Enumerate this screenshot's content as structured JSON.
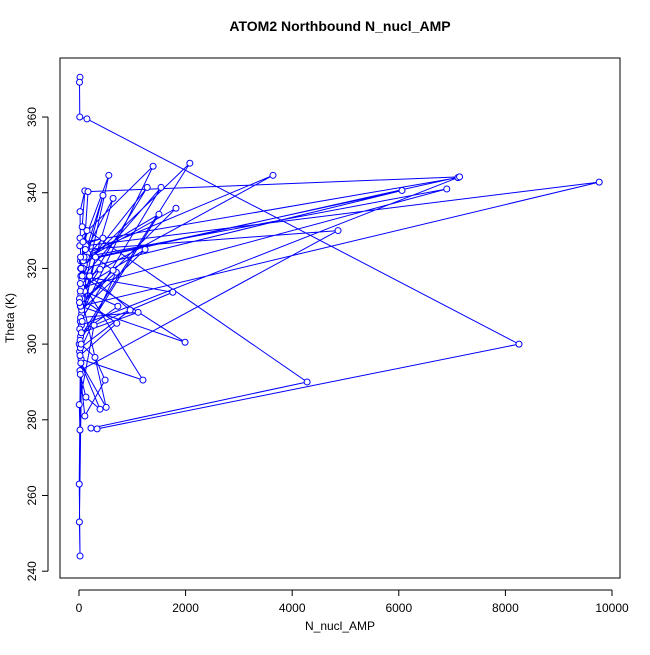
{
  "chart_data": {
    "type": "line",
    "title": "ATOM2 Northbound N_nucl_AMP",
    "x_label": "N_nucl_AMP",
    "y_label": "Theta (K)",
    "color": "#0000ff",
    "marker": "circle",
    "x": [
      19,
      10,
      15,
      150,
      8255,
      340,
      225,
      4280,
      60,
      110,
      20,
      35,
      5,
      80,
      640,
      30,
      45,
      7110,
      95,
      560,
      25,
      9760,
      130,
      40,
      1200,
      70,
      15,
      310,
      6060,
      85,
      50,
      1390,
      20,
      160,
      3640,
      55,
      30,
      2080,
      100,
      12,
      700,
      40,
      1820,
      65,
      25,
      1540,
      90,
      18,
      4860,
      120,
      35,
      1280,
      75,
      22,
      1500,
      140,
      50,
      1240,
      60,
      28,
      960,
      200,
      30,
      1110,
      45,
      730,
      105,
      20,
      710,
      55,
      510,
      35,
      395,
      130,
      25,
      110,
      490,
      300,
      40,
      19,
      5,
      284,
      1760,
      60,
      1990,
      30,
      640,
      15,
      450,
      80,
      7140,
      170,
      50,
      6900,
      95,
      30,
      450,
      25,
      395,
      10,
      60,
      8,
      20,
      5,
      40,
      150,
      75,
      25,
      10,
      30
    ],
    "values": [
      370.5,
      369.2,
      360,
      359.5,
      300,
      277.6,
      277.8,
      290,
      331,
      340.5,
      335,
      318,
      300,
      312,
      338.5,
      322,
      305,
      344,
      327,
      344.6,
      310,
      342.8,
      326,
      296,
      290.5,
      316,
      304,
      323,
      340.6,
      320,
      308,
      347,
      328,
      324,
      344.6,
      317,
      302,
      347.8,
      321,
      298,
      319,
      311,
      335.9,
      322,
      306,
      341.4,
      318,
      293,
      330,
      325,
      313,
      341.4,
      320,
      301,
      334.3,
      323,
      309,
      325,
      315,
      299,
      309,
      318,
      307,
      308.4,
      303,
      310,
      314,
      297,
      305.5,
      312,
      283.3,
      295,
      282.8,
      286,
      292,
      281,
      290.5,
      296.5,
      300,
      277.3,
      284,
      305,
      313.7,
      318,
      300.5,
      310,
      319.5,
      326,
      328,
      322,
      344.2,
      340.3,
      315,
      341,
      323,
      320,
      339.3,
      316,
      319.8,
      312,
      306,
      253,
      244,
      263,
      320,
      330,
      327,
      314,
      311,
      323
    ],
    "xlim": [
      -356,
      10150
    ],
    "ylim": [
      238.2,
      375.6
    ],
    "xticks": [
      0,
      2000,
      4000,
      6000,
      8000,
      10000
    ],
    "yticks": [
      240,
      260,
      280,
      300,
      320,
      340,
      360
    ]
  }
}
